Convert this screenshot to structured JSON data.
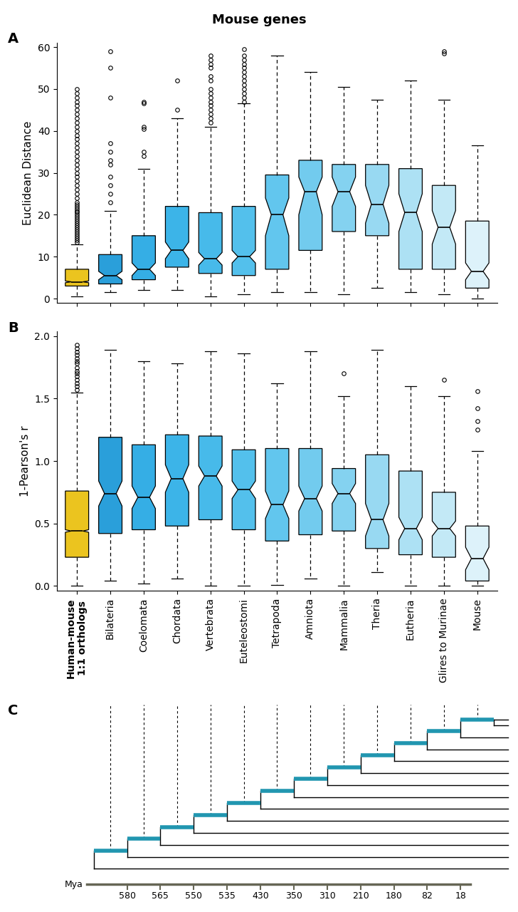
{
  "figure": {
    "title": "Mouse genes",
    "panel_labels": [
      "A",
      "B",
      "C"
    ]
  },
  "chart_data": [
    {
      "type": "box",
      "ylabel": "Euclidean Distance",
      "ylim": [
        -1,
        61
      ],
      "yticks": [
        0,
        10,
        20,
        30,
        40,
        50,
        60
      ],
      "tick_labels": "y",
      "colors": [
        "#EBC41F",
        "#2A9FDA",
        "#35AEE5",
        "#3CB4E8",
        "#47BAEA",
        "#53C0EC",
        "#62C6EE",
        "#72CBEE",
        "#84D2F0",
        "#98D9F2",
        "#ADE1F4",
        "#C3E9F6",
        "#DDF2FA"
      ],
      "boxes": [
        {
          "whislo": 0.5,
          "q1": 3,
          "med": 4,
          "q3": 7,
          "whishi": 13,
          "cilo": 3.8,
          "cihi": 4.2,
          "fliers": [
            13.5,
            14,
            14.5,
            15,
            15.5,
            16,
            16.5,
            17,
            17.5,
            18,
            18.5,
            19,
            19.5,
            20,
            20.5,
            21,
            21.5,
            22,
            22.5,
            23,
            24,
            25,
            26,
            27,
            28,
            29,
            30,
            31,
            32,
            33,
            34,
            35,
            36,
            37,
            38,
            39,
            40,
            41,
            42,
            43,
            44,
            45,
            46,
            47,
            48,
            49,
            50
          ]
        },
        {
          "whislo": 1.5,
          "q1": 3.5,
          "med": 5.5,
          "q3": 10.5,
          "whishi": 21,
          "cilo": 4.5,
          "cihi": 6.5,
          "fliers": [
            23,
            25,
            27,
            29,
            32,
            33,
            35,
            37,
            48,
            55,
            59
          ]
        },
        {
          "whislo": 2,
          "q1": 4.5,
          "med": 7,
          "q3": 15,
          "whishi": 31,
          "cilo": 5.5,
          "cihi": 8.5,
          "fliers": [
            34,
            35,
            40.5,
            41,
            46.5,
            47
          ]
        },
        {
          "whislo": 2,
          "q1": 7.5,
          "med": 11.5,
          "q3": 22,
          "whishi": 43,
          "cilo": 9.5,
          "cihi": 13.5,
          "fliers": [
            45,
            52
          ]
        },
        {
          "whislo": 0.5,
          "q1": 6,
          "med": 9.5,
          "q3": 20.5,
          "whishi": 41,
          "cilo": 8,
          "cihi": 11,
          "fliers": [
            42,
            43,
            44,
            45,
            46,
            47,
            48,
            49,
            50,
            52,
            53,
            55,
            56,
            57,
            58
          ]
        },
        {
          "whislo": 1,
          "q1": 5.5,
          "med": 10,
          "q3": 22,
          "whishi": 46.5,
          "cilo": 8.5,
          "cihi": 11.5,
          "fliers": [
            47,
            48,
            49,
            50,
            51,
            52,
            53,
            54,
            55,
            56,
            57,
            58,
            59.5
          ]
        },
        {
          "whislo": 1.5,
          "q1": 7,
          "med": 20,
          "q3": 29.5,
          "whishi": 58,
          "cilo": 15,
          "cihi": 24,
          "fliers": []
        },
        {
          "whislo": 1.5,
          "q1": 11.5,
          "med": 25.5,
          "q3": 33,
          "whishi": 54,
          "cilo": 20,
          "cihi": 29,
          "fliers": []
        },
        {
          "whislo": 1,
          "q1": 16,
          "med": 25.5,
          "q3": 32,
          "whishi": 50.5,
          "cilo": 22,
          "cihi": 29,
          "fliers": []
        },
        {
          "whislo": 2.5,
          "q1": 15,
          "med": 22.5,
          "q3": 32,
          "whishi": 47.5,
          "cilo": 18,
          "cihi": 27,
          "fliers": []
        },
        {
          "whislo": 1.5,
          "q1": 7,
          "med": 20.5,
          "q3": 31,
          "whishi": 52,
          "cilo": 16,
          "cihi": 25,
          "fliers": []
        },
        {
          "whislo": 1,
          "q1": 7,
          "med": 17,
          "q3": 27,
          "whishi": 47.5,
          "cilo": 13,
          "cihi": 21,
          "fliers": [
            58.5,
            59
          ]
        },
        {
          "whislo": 0,
          "q1": 2.5,
          "med": 6.5,
          "q3": 18.5,
          "whishi": 36.5,
          "cilo": 4.5,
          "cihi": 8.5,
          "fliers": []
        }
      ]
    },
    {
      "type": "box",
      "ylabel": "1-Pearson's r",
      "ylim": [
        -0.04,
        2.04
      ],
      "yticks": [
        {
          "value": 0,
          "label": "0.0"
        },
        0.5,
        {
          "value": 1,
          "label": "1.0"
        },
        1.5,
        {
          "value": 2,
          "label": "2.0"
        }
      ],
      "categories": [
        "Human-mouse\n1:1 orthologs",
        "Bilateria",
        "Coelomata",
        "Chordata",
        "Vertebrata",
        "Euteleostomi",
        "Tetrapoda",
        "Amniota",
        "Mammalia",
        "Theria",
        "Eutheria",
        "Glires to Murinae",
        "Mouse"
      ],
      "colors": [
        "#EBC41F",
        "#2A9FDA",
        "#35AEE5",
        "#3CB4E8",
        "#47BAEA",
        "#53C0EC",
        "#62C6EE",
        "#72CBEE",
        "#84D2F0",
        "#98D9F2",
        "#ADE1F4",
        "#C3E9F6",
        "#DDF2FA"
      ],
      "boxes": [
        {
          "whislo": 0,
          "q1": 0.23,
          "med": 0.44,
          "q3": 0.76,
          "whishi": 1.55,
          "cilo": 0.43,
          "cihi": 0.45,
          "fliers": [
            1.57,
            1.6,
            1.62,
            1.65,
            1.68,
            1.7,
            1.72,
            1.75,
            1.78,
            1.8,
            1.82,
            1.85,
            1.87,
            1.9,
            1.93
          ]
        },
        {
          "whislo": 0.04,
          "q1": 0.42,
          "med": 0.74,
          "q3": 1.19,
          "whishi": 1.89,
          "cilo": 0.64,
          "cihi": 0.84,
          "fliers": []
        },
        {
          "whislo": 0.02,
          "q1": 0.45,
          "med": 0.71,
          "q3": 1.13,
          "whishi": 1.8,
          "cilo": 0.62,
          "cihi": 0.8,
          "fliers": []
        },
        {
          "whislo": 0.06,
          "q1": 0.48,
          "med": 0.86,
          "q3": 1.21,
          "whishi": 1.78,
          "cilo": 0.75,
          "cihi": 0.97,
          "fliers": []
        },
        {
          "whislo": 0,
          "q1": 0.53,
          "med": 0.88,
          "q3": 1.2,
          "whishi": 1.88,
          "cilo": 0.8,
          "cihi": 0.96,
          "fliers": []
        },
        {
          "whislo": 0,
          "q1": 0.45,
          "med": 0.77,
          "q3": 1.09,
          "whishi": 1.86,
          "cilo": 0.7,
          "cihi": 0.84,
          "fliers": []
        },
        {
          "whislo": 0.01,
          "q1": 0.36,
          "med": 0.65,
          "q3": 1.1,
          "whishi": 1.62,
          "cilo": 0.54,
          "cihi": 0.76,
          "fliers": []
        },
        {
          "whislo": 0.06,
          "q1": 0.41,
          "med": 0.7,
          "q3": 1.1,
          "whishi": 1.88,
          "cilo": 0.6,
          "cihi": 0.8,
          "fliers": []
        },
        {
          "whislo": 0,
          "q1": 0.44,
          "med": 0.74,
          "q3": 0.94,
          "whishi": 1.52,
          "cilo": 0.66,
          "cihi": 0.82,
          "fliers": [
            1.7
          ]
        },
        {
          "whislo": 0.11,
          "q1": 0.3,
          "med": 0.53,
          "q3": 1.05,
          "whishi": 1.89,
          "cilo": 0.4,
          "cihi": 0.66,
          "fliers": []
        },
        {
          "whislo": 0,
          "q1": 0.25,
          "med": 0.46,
          "q3": 0.92,
          "whishi": 1.6,
          "cilo": 0.37,
          "cihi": 0.55,
          "fliers": []
        },
        {
          "whislo": 0,
          "q1": 0.23,
          "med": 0.46,
          "q3": 0.75,
          "whishi": 1.52,
          "cilo": 0.4,
          "cihi": 0.52,
          "fliers": [
            1.65
          ]
        },
        {
          "whislo": 0,
          "q1": 0.04,
          "med": 0.22,
          "q3": 0.48,
          "whishi": 1.08,
          "cilo": 0.13,
          "cihi": 0.31,
          "fliers": [
            1.25,
            1.32,
            1.42,
            1.56
          ]
        }
      ]
    }
  ],
  "tree": {
    "axis_label": "Mya",
    "ages": [
      580,
      565,
      550,
      535,
      430,
      350,
      310,
      210,
      180,
      82,
      18
    ],
    "color": "#2196B0"
  }
}
